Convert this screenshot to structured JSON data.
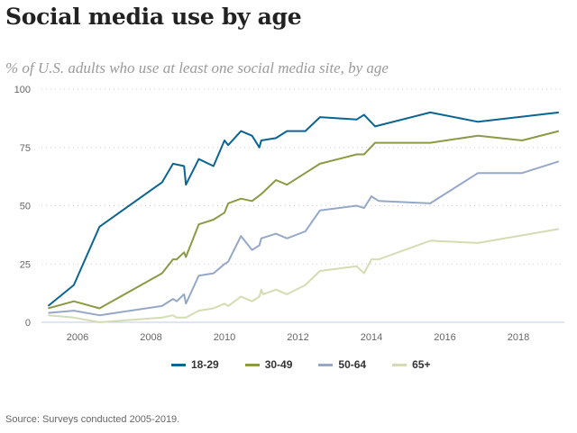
{
  "header": {
    "title": "Social media use by age",
    "subtitle": "% of U.S. adults who use at least one social media site, by age"
  },
  "footer": {
    "source": "Source: Surveys conducted 2005-2019."
  },
  "chart_data": {
    "type": "line",
    "title": "Social media use by age",
    "subtitle": "% of U.S. adults who use at least one social media site, by age",
    "xlabel": "",
    "ylabel": "",
    "xlim": [
      2005.0,
      2019.3
    ],
    "ylim": [
      0,
      100
    ],
    "x_ticks": [
      2006,
      2008,
      2010,
      2012,
      2014,
      2016,
      2018
    ],
    "x_tick_labels": [
      "2006",
      "2008",
      "2010",
      "2012",
      "2014",
      "2016",
      "2018"
    ],
    "y_ticks": [
      0,
      25,
      50,
      75,
      100
    ],
    "y_tick_labels": [
      "0",
      "25",
      "50",
      "75",
      "100"
    ],
    "grid": "horizontal-dotted",
    "legend_position": "bottom-center",
    "series": [
      {
        "name": "18-29",
        "color": "#0b6592",
        "points": [
          [
            2005.2,
            7
          ],
          [
            2005.9,
            16
          ],
          [
            2006.6,
            41
          ],
          [
            2008.3,
            60
          ],
          [
            2008.6,
            68
          ],
          [
            2008.9,
            67
          ],
          [
            2008.95,
            59
          ],
          [
            2009.3,
            70
          ],
          [
            2009.7,
            67
          ],
          [
            2010.0,
            78
          ],
          [
            2010.1,
            76
          ],
          [
            2010.45,
            82
          ],
          [
            2010.75,
            80
          ],
          [
            2010.95,
            75
          ],
          [
            2011.0,
            78
          ],
          [
            2011.4,
            79
          ],
          [
            2011.7,
            82
          ],
          [
            2012.2,
            82
          ],
          [
            2012.6,
            88
          ],
          [
            2013.6,
            87
          ],
          [
            2013.8,
            89
          ],
          [
            2014.1,
            84
          ],
          [
            2015.6,
            90
          ],
          [
            2016.9,
            86
          ],
          [
            2019.1,
            90
          ]
        ]
      },
      {
        "name": "30-49",
        "color": "#8c9a46",
        "points": [
          [
            2005.2,
            6
          ],
          [
            2005.9,
            9
          ],
          [
            2006.6,
            6
          ],
          [
            2008.3,
            21
          ],
          [
            2008.6,
            27
          ],
          [
            2008.7,
            27
          ],
          [
            2008.9,
            30
          ],
          [
            2008.95,
            28
          ],
          [
            2009.3,
            42
          ],
          [
            2009.7,
            44
          ],
          [
            2010.0,
            47
          ],
          [
            2010.1,
            51
          ],
          [
            2010.45,
            53
          ],
          [
            2010.75,
            52
          ],
          [
            2011.0,
            55
          ],
          [
            2011.4,
            61
          ],
          [
            2011.7,
            59
          ],
          [
            2012.2,
            64
          ],
          [
            2012.6,
            68
          ],
          [
            2013.6,
            72
          ],
          [
            2013.8,
            72
          ],
          [
            2014.1,
            77
          ],
          [
            2015.6,
            77
          ],
          [
            2016.9,
            80
          ],
          [
            2018.1,
            78
          ],
          [
            2019.1,
            82
          ]
        ]
      },
      {
        "name": "50-64",
        "color": "#95a8c8",
        "points": [
          [
            2005.2,
            4
          ],
          [
            2005.9,
            5
          ],
          [
            2006.6,
            3
          ],
          [
            2008.3,
            7
          ],
          [
            2008.6,
            10
          ],
          [
            2008.7,
            9
          ],
          [
            2008.9,
            12
          ],
          [
            2008.95,
            8
          ],
          [
            2009.3,
            20
          ],
          [
            2009.7,
            21
          ],
          [
            2010.0,
            25
          ],
          [
            2010.1,
            26
          ],
          [
            2010.45,
            37
          ],
          [
            2010.75,
            31
          ],
          [
            2010.95,
            33
          ],
          [
            2011.0,
            36
          ],
          [
            2011.4,
            38
          ],
          [
            2011.7,
            36
          ],
          [
            2012.2,
            39
          ],
          [
            2012.6,
            48
          ],
          [
            2013.6,
            50
          ],
          [
            2013.8,
            49
          ],
          [
            2014.0,
            54
          ],
          [
            2014.2,
            52
          ],
          [
            2015.6,
            51
          ],
          [
            2016.9,
            64
          ],
          [
            2018.1,
            64
          ],
          [
            2019.1,
            69
          ]
        ]
      },
      {
        "name": "65+",
        "color": "#d3dcb2",
        "points": [
          [
            2005.2,
            3
          ],
          [
            2005.9,
            2
          ],
          [
            2006.6,
            0
          ],
          [
            2008.3,
            2
          ],
          [
            2008.6,
            3
          ],
          [
            2008.7,
            2
          ],
          [
            2008.9,
            2
          ],
          [
            2008.95,
            2
          ],
          [
            2009.3,
            5
          ],
          [
            2009.7,
            6
          ],
          [
            2010.0,
            8
          ],
          [
            2010.1,
            7
          ],
          [
            2010.45,
            11
          ],
          [
            2010.75,
            9
          ],
          [
            2010.95,
            11
          ],
          [
            2011.0,
            14
          ],
          [
            2011.05,
            12
          ],
          [
            2011.4,
            14
          ],
          [
            2011.7,
            12
          ],
          [
            2012.2,
            16
          ],
          [
            2012.6,
            22
          ],
          [
            2013.6,
            24
          ],
          [
            2013.8,
            21
          ],
          [
            2014.0,
            27
          ],
          [
            2014.2,
            27
          ],
          [
            2015.6,
            35
          ],
          [
            2016.9,
            34
          ],
          [
            2019.1,
            40
          ]
        ]
      }
    ]
  }
}
